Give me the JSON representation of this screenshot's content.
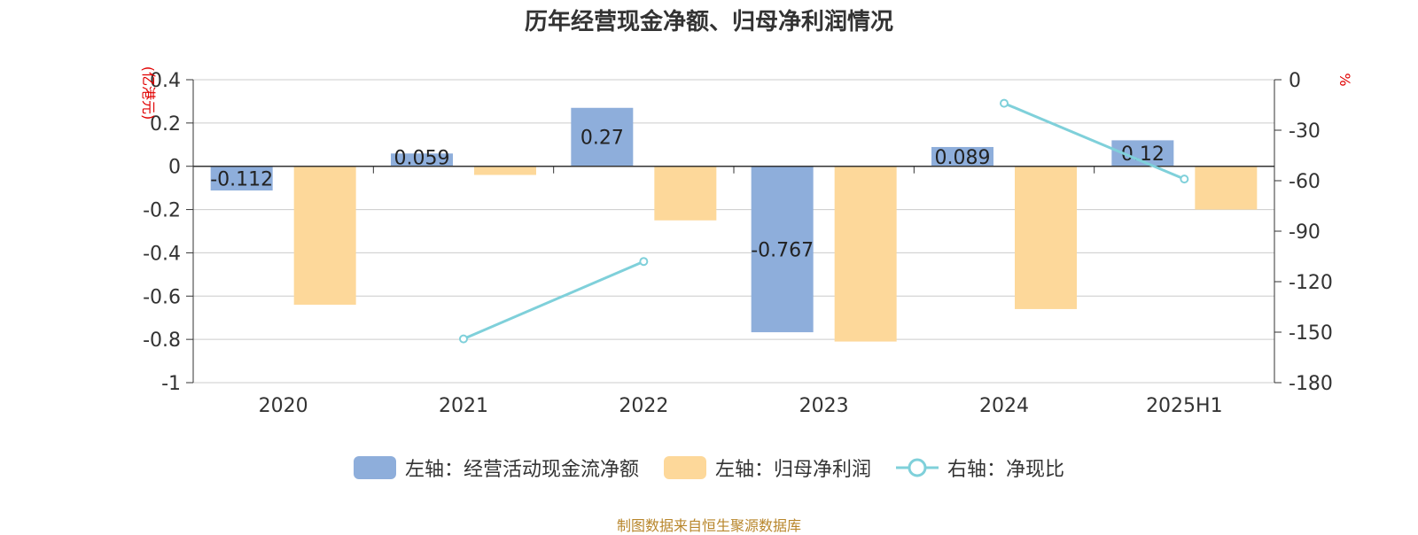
{
  "chart_data": {
    "type": "bar",
    "title": "历年经营现金净额、归母净利润情况",
    "categories": [
      "2020",
      "2021",
      "2022",
      "2023",
      "2024",
      "2025H1"
    ],
    "left_axis": {
      "unit": "(亿港元)",
      "ylim": [
        -1,
        0.4
      ],
      "ticks": [
        "0.4",
        "0.2",
        "0",
        "-0.2",
        "-0.4",
        "-0.6",
        "-0.8",
        "-1"
      ]
    },
    "right_axis": {
      "unit": "%",
      "ylim": [
        -180,
        0
      ],
      "ticks": [
        "0",
        "-30",
        "-60",
        "-90",
        "-120",
        "-150",
        "-180"
      ]
    },
    "series": [
      {
        "name": "左轴：经营活动现金流净额",
        "type": "bar",
        "axis": "left",
        "color": "#8eaedb",
        "values": [
          -0.112,
          0.059,
          0.27,
          -0.767,
          0.089,
          0.12
        ],
        "labels": [
          "-0.112",
          "0.059",
          "0.27",
          "-0.767",
          "0.089",
          "0.12"
        ]
      },
      {
        "name": "左轴：归母净利润",
        "type": "bar",
        "axis": "left",
        "color": "#fdd89a",
        "values": [
          -0.64,
          -0.04,
          -0.25,
          -0.81,
          -0.66,
          -0.2
        ]
      },
      {
        "name": "右轴：净现比",
        "type": "line",
        "axis": "right",
        "color": "#7fd0da",
        "values": [
          null,
          -154,
          -108,
          null,
          -14,
          -59
        ]
      }
    ],
    "grid": true,
    "legend": "bottom"
  },
  "source_note": "制图数据来自恒生聚源数据库"
}
